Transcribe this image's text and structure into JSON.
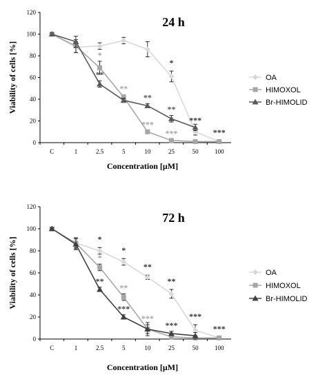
{
  "chart_data": [
    {
      "type": "line",
      "title": "24 h",
      "xlabel": "Concentration  [µM]",
      "ylabel": "Viability of cells [%]",
      "ylim": [
        0,
        120
      ],
      "yticks": [
        "0",
        "20",
        "40",
        "60",
        "80",
        "100",
        "120"
      ],
      "categories": [
        "C",
        "1",
        "2.5",
        "5",
        "10",
        "25",
        "50",
        "100"
      ],
      "legend_position": "right",
      "series": [
        {
          "name": "OA",
          "color": "#d8d8d8",
          "marker": "diamond",
          "values": [
            100,
            88,
            89,
            94,
            86,
            61,
            10,
            1
          ],
          "errors": [
            1,
            5,
            3,
            3,
            7,
            5,
            3,
            1
          ],
          "significance": [
            "",
            "",
            "",
            "",
            "",
            "*",
            "***",
            "***"
          ]
        },
        {
          "name": "HIMOXOL",
          "color": "#a6a6a6",
          "marker": "square",
          "values": [
            100,
            89,
            69,
            42,
            10,
            2,
            1,
            1
          ],
          "errors": [
            1,
            6,
            6,
            2,
            1,
            1,
            1,
            1
          ],
          "significance": [
            "",
            "",
            "*",
            "**",
            "***",
            "***",
            "",
            ""
          ]
        },
        {
          "name": "Br-HIMOLID",
          "color": "#595959",
          "marker": "triangle",
          "values": [
            100,
            93,
            54,
            39,
            34,
            22,
            14,
            null
          ],
          "errors": [
            1,
            5,
            3,
            2,
            2,
            3,
            3,
            0
          ],
          "significance": [
            "",
            "",
            "**",
            "",
            "**",
            "**",
            "",
            ""
          ]
        }
      ]
    },
    {
      "type": "line",
      "title": "72 h",
      "xlabel": "Concentration  [µM]",
      "ylabel": "Viability of cells [%]",
      "ylim": [
        0,
        120
      ],
      "yticks": [
        "0",
        "20",
        "40",
        "60",
        "80",
        "100",
        "120"
      ],
      "categories": [
        "C",
        "1",
        "2.5",
        "5",
        "10",
        "25",
        "50",
        "100"
      ],
      "legend_position": "right",
      "series": [
        {
          "name": "OA",
          "color": "#d8d8d8",
          "marker": "diamond",
          "values": [
            100,
            87,
            80,
            70,
            56,
            41,
            8,
            1
          ],
          "errors": [
            1,
            4,
            3,
            3,
            2,
            4,
            5,
            1
          ],
          "significance": [
            "",
            "",
            "*",
            "*",
            "**",
            "**",
            "***",
            "***"
          ]
        },
        {
          "name": "HIMOXOL",
          "color": "#a6a6a6",
          "marker": "square",
          "values": [
            100,
            87,
            65,
            38,
            9,
            2,
            1,
            1
          ],
          "errors": [
            1,
            5,
            3,
            3,
            4,
            1,
            1,
            1
          ],
          "significance": [
            "",
            "",
            "*",
            "**",
            "***",
            "",
            "",
            ""
          ]
        },
        {
          "name": "Br-HIMOLID",
          "color": "#404040",
          "marker": "triangle",
          "values": [
            100,
            86,
            45,
            20,
            9,
            5,
            3,
            null
          ],
          "errors": [
            1,
            5,
            2,
            2,
            6,
            2,
            3,
            0
          ],
          "significance": [
            "",
            "",
            "**",
            "***",
            "",
            "***",
            "",
            ""
          ]
        }
      ]
    }
  ]
}
